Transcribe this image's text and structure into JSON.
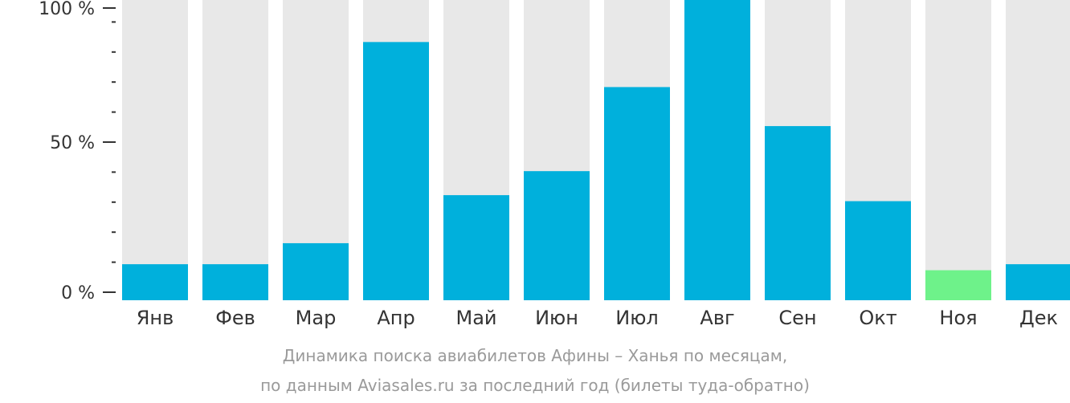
{
  "chart_data": {
    "type": "bar",
    "categories": [
      "Янв",
      "Фев",
      "Мар",
      "Апр",
      "Май",
      "Июн",
      "Июл",
      "Авг",
      "Сен",
      "Окт",
      "Ноя",
      "Дек"
    ],
    "values": [
      12,
      12,
      19,
      86,
      35,
      43,
      71,
      100,
      58,
      33,
      10,
      12
    ],
    "ylim": [
      0,
      100
    ],
    "y_ticks": [
      {
        "value": 0,
        "label": "0 %"
      },
      {
        "value": 50,
        "label": "50 %"
      },
      {
        "value": 100,
        "label": "100 %"
      }
    ],
    "y_minor_step": 10,
    "highlight_category": "Ноя",
    "colors": {
      "bar": "#00b0dc",
      "highlight": "#6ef28a",
      "background_bar": "#e8e8e8",
      "axis": "#333333"
    },
    "caption": [
      "Динамика поиска авиабилетов Афины – Ханья по месяцам,",
      "по данным Aviasales.ru за последний год (билеты туда-обратно)"
    ]
  }
}
